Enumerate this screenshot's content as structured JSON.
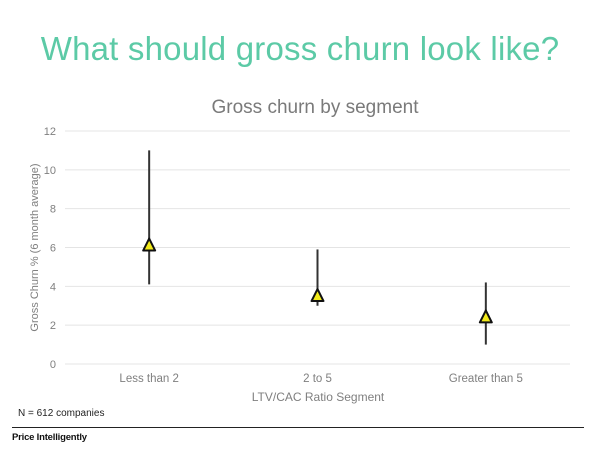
{
  "headline": "What should gross churn look like?",
  "chart_data": {
    "type": "error-bar",
    "title": "Gross churn by segment",
    "xlabel": "LTV/CAC Ratio Segment",
    "ylabel": "Gross Churn % (6 month average)",
    "ylim": [
      0,
      12
    ],
    "yticks": [
      0,
      2,
      4,
      6,
      8,
      10,
      12
    ],
    "grid": true,
    "categories": [
      "Less than 2",
      "2 to 5",
      "Greater than 5"
    ],
    "points": [
      {
        "category": "Less than 2",
        "value": 6.1,
        "low": 4.1,
        "high": 11.0
      },
      {
        "category": "2 to 5",
        "value": 3.5,
        "low": 3.0,
        "high": 5.9
      },
      {
        "category": "Greater than 5",
        "value": 2.4,
        "low": 1.0,
        "high": 4.2
      }
    ],
    "colors": {
      "marker_fill": "#f2ea1b",
      "marker_stroke": "#111111",
      "range_line": "#333333",
      "grid": "#e4e4e4",
      "text": "#7f7f7f"
    }
  },
  "footnote": "N = 612 companies",
  "brand": "Price Intelligently"
}
